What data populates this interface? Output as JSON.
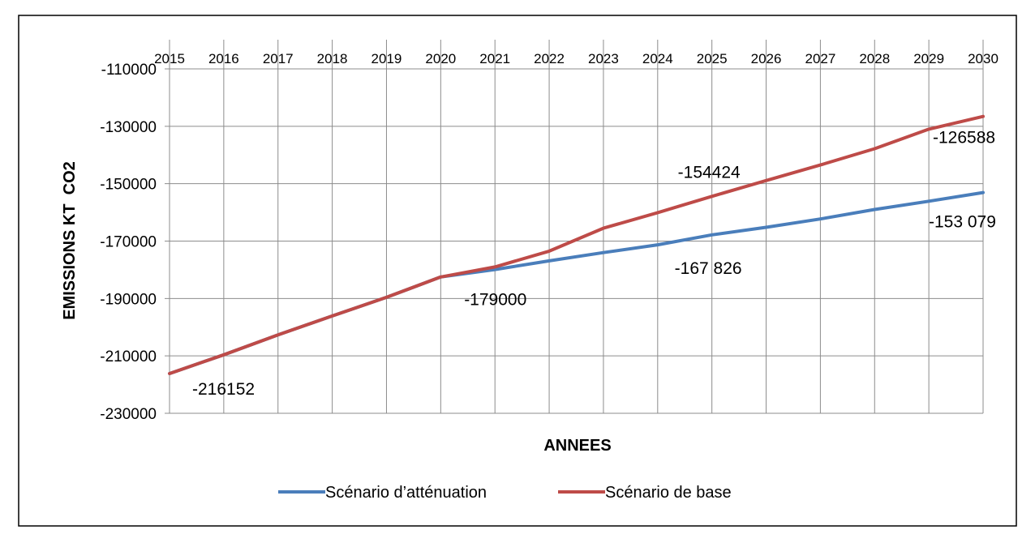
{
  "chart_data": {
    "type": "line",
    "title": "",
    "xlabel": "ANNEES",
    "ylabel": "EMISSIONS KT  CO2",
    "x": [
      "2015",
      "2016",
      "2017",
      "2018",
      "2019",
      "2020",
      "2021",
      "2022",
      "2023",
      "2024",
      "2025",
      "2026",
      "2027",
      "2028",
      "2029",
      "2030"
    ],
    "ylim": [
      -230000,
      -110000
    ],
    "yticks": [
      "-110000",
      "-130000",
      "-150000",
      "-170000",
      "-190000",
      "-210000",
      "-230000"
    ],
    "grid": true,
    "legend_position": "bottom",
    "series": [
      {
        "name": "Scénario d’atténuation",
        "color": "#4a7ebb",
        "values": [
          -216152,
          -209600,
          -202700,
          -196100,
          -189600,
          -182500,
          -179900,
          -176900,
          -174000,
          -171300,
          -167826,
          -165200,
          -162300,
          -159000,
          -156100,
          -153079
        ]
      },
      {
        "name": "Scénario de base",
        "color": "#be4b48",
        "values": [
          -216152,
          -209600,
          -202700,
          -196100,
          -189600,
          -182500,
          -179000,
          -173500,
          -165500,
          -160100,
          -154424,
          -148900,
          -143500,
          -137800,
          -131000,
          -126588
        ]
      }
    ],
    "annotations": [
      {
        "text": "-216152",
        "x": "2015",
        "y": -216152
      },
      {
        "text": "-179000",
        "x": "2021",
        "y": -179000
      },
      {
        "text": "-154424",
        "x": "2025",
        "y": -154424
      },
      {
        "text": "-167 826",
        "x": "2025",
        "y": -167826
      },
      {
        "text": "-126588",
        "x": "2030",
        "y": -126588
      },
      {
        "text": "-153 079",
        "x": "2030",
        "y": -153079
      }
    ]
  }
}
